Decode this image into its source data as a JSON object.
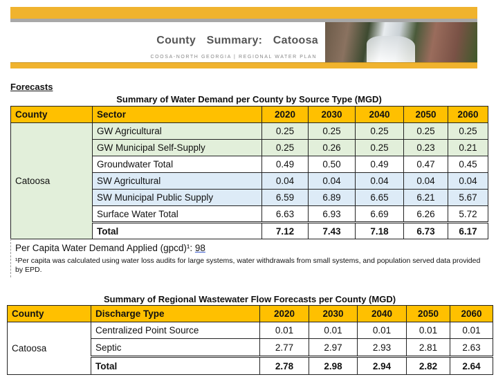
{
  "header": {
    "title": "County  Summary:  Catoosa",
    "subtitle": "COOSA-NORTH GEORGIA | REGIONAL WATER PLAN"
  },
  "section_heading": "Forecasts",
  "demand_table": {
    "caption": "Summary of Water Demand per County by Source Type (MGD)",
    "headers": [
      "County",
      "Sector",
      "2020",
      "2030",
      "2040",
      "2050",
      "2060"
    ],
    "county": "Catoosa",
    "rows": [
      {
        "sector": "GW Agricultural",
        "values": [
          "0.25",
          "0.25",
          "0.25",
          "0.25",
          "0.25"
        ]
      },
      {
        "sector": "GW Municipal Self-Supply",
        "values": [
          "0.25",
          "0.26",
          "0.25",
          "0.23",
          "0.21"
        ]
      },
      {
        "sector": "Groundwater Total",
        "values": [
          "0.49",
          "0.50",
          "0.49",
          "0.47",
          "0.45"
        ]
      },
      {
        "sector": "SW Agricultural",
        "values": [
          "0.04",
          "0.04",
          "0.04",
          "0.04",
          "0.04"
        ]
      },
      {
        "sector": "SW Municipal Public Supply",
        "values": [
          "6.59",
          "6.89",
          "6.65",
          "6.21",
          "5.67"
        ]
      },
      {
        "sector": "Surface Water Total",
        "values": [
          "6.63",
          "6.93",
          "6.69",
          "6.26",
          "5.72"
        ]
      },
      {
        "sector": "Total",
        "values": [
          "7.12",
          "7.43",
          "7.18",
          "6.73",
          "6.17"
        ]
      }
    ],
    "colors": {
      "header": "#ffc000",
      "groundwater": "#e2efda",
      "surface_water": "#ddebf7"
    }
  },
  "per_capita": {
    "label": "Per Capita Water Demand Applied (gpcd)¹: ",
    "value": "98",
    "footnote": "¹Per capita was calculated using water loss audits for large systems, water withdrawals from small systems, and population served data provided by EPD."
  },
  "wastewater_table": {
    "caption": "Summary of Regional Wastewater Flow Forecasts per County (MGD)",
    "headers": [
      "County",
      "Discharge Type",
      "2020",
      "2030",
      "2040",
      "2050",
      "2060"
    ],
    "county": "Catoosa",
    "rows": [
      {
        "type": "Centralized Point Source",
        "values": [
          "0.01",
          "0.01",
          "0.01",
          "0.01",
          "0.01"
        ]
      },
      {
        "type": "Septic",
        "values": [
          "2.77",
          "2.97",
          "2.93",
          "2.81",
          "2.63"
        ]
      },
      {
        "type": "Total",
        "values": [
          "2.78",
          "2.98",
          "2.94",
          "2.82",
          "2.64"
        ]
      }
    ]
  }
}
